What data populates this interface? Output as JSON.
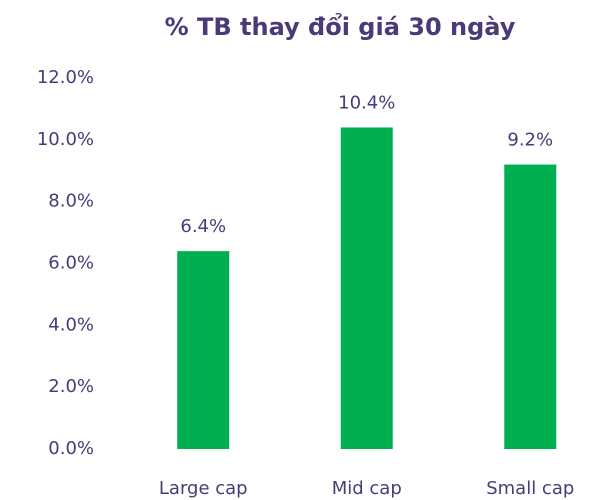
{
  "chart_data": {
    "type": "bar",
    "title": "% TB thay đổi giá 30 ngày",
    "categories": [
      "Large cap",
      "Mid cap",
      "Small cap"
    ],
    "values": [
      6.4,
      10.4,
      9.2
    ],
    "value_labels": [
      "6.4%",
      "10.4%",
      "9.2%"
    ],
    "color": "#00b050",
    "ylim": [
      0,
      12
    ],
    "yticks": [
      {
        "value": 0,
        "label": "0.0%"
      },
      {
        "value": 2,
        "label": "2.0%"
      },
      {
        "value": 4,
        "label": "4.0%"
      },
      {
        "value": 6,
        "label": "6.0%"
      },
      {
        "value": 8,
        "label": "8.0%"
      },
      {
        "value": 10,
        "label": "10.0%"
      },
      {
        "value": 12,
        "label": "12.0%"
      }
    ],
    "grid": false
  }
}
